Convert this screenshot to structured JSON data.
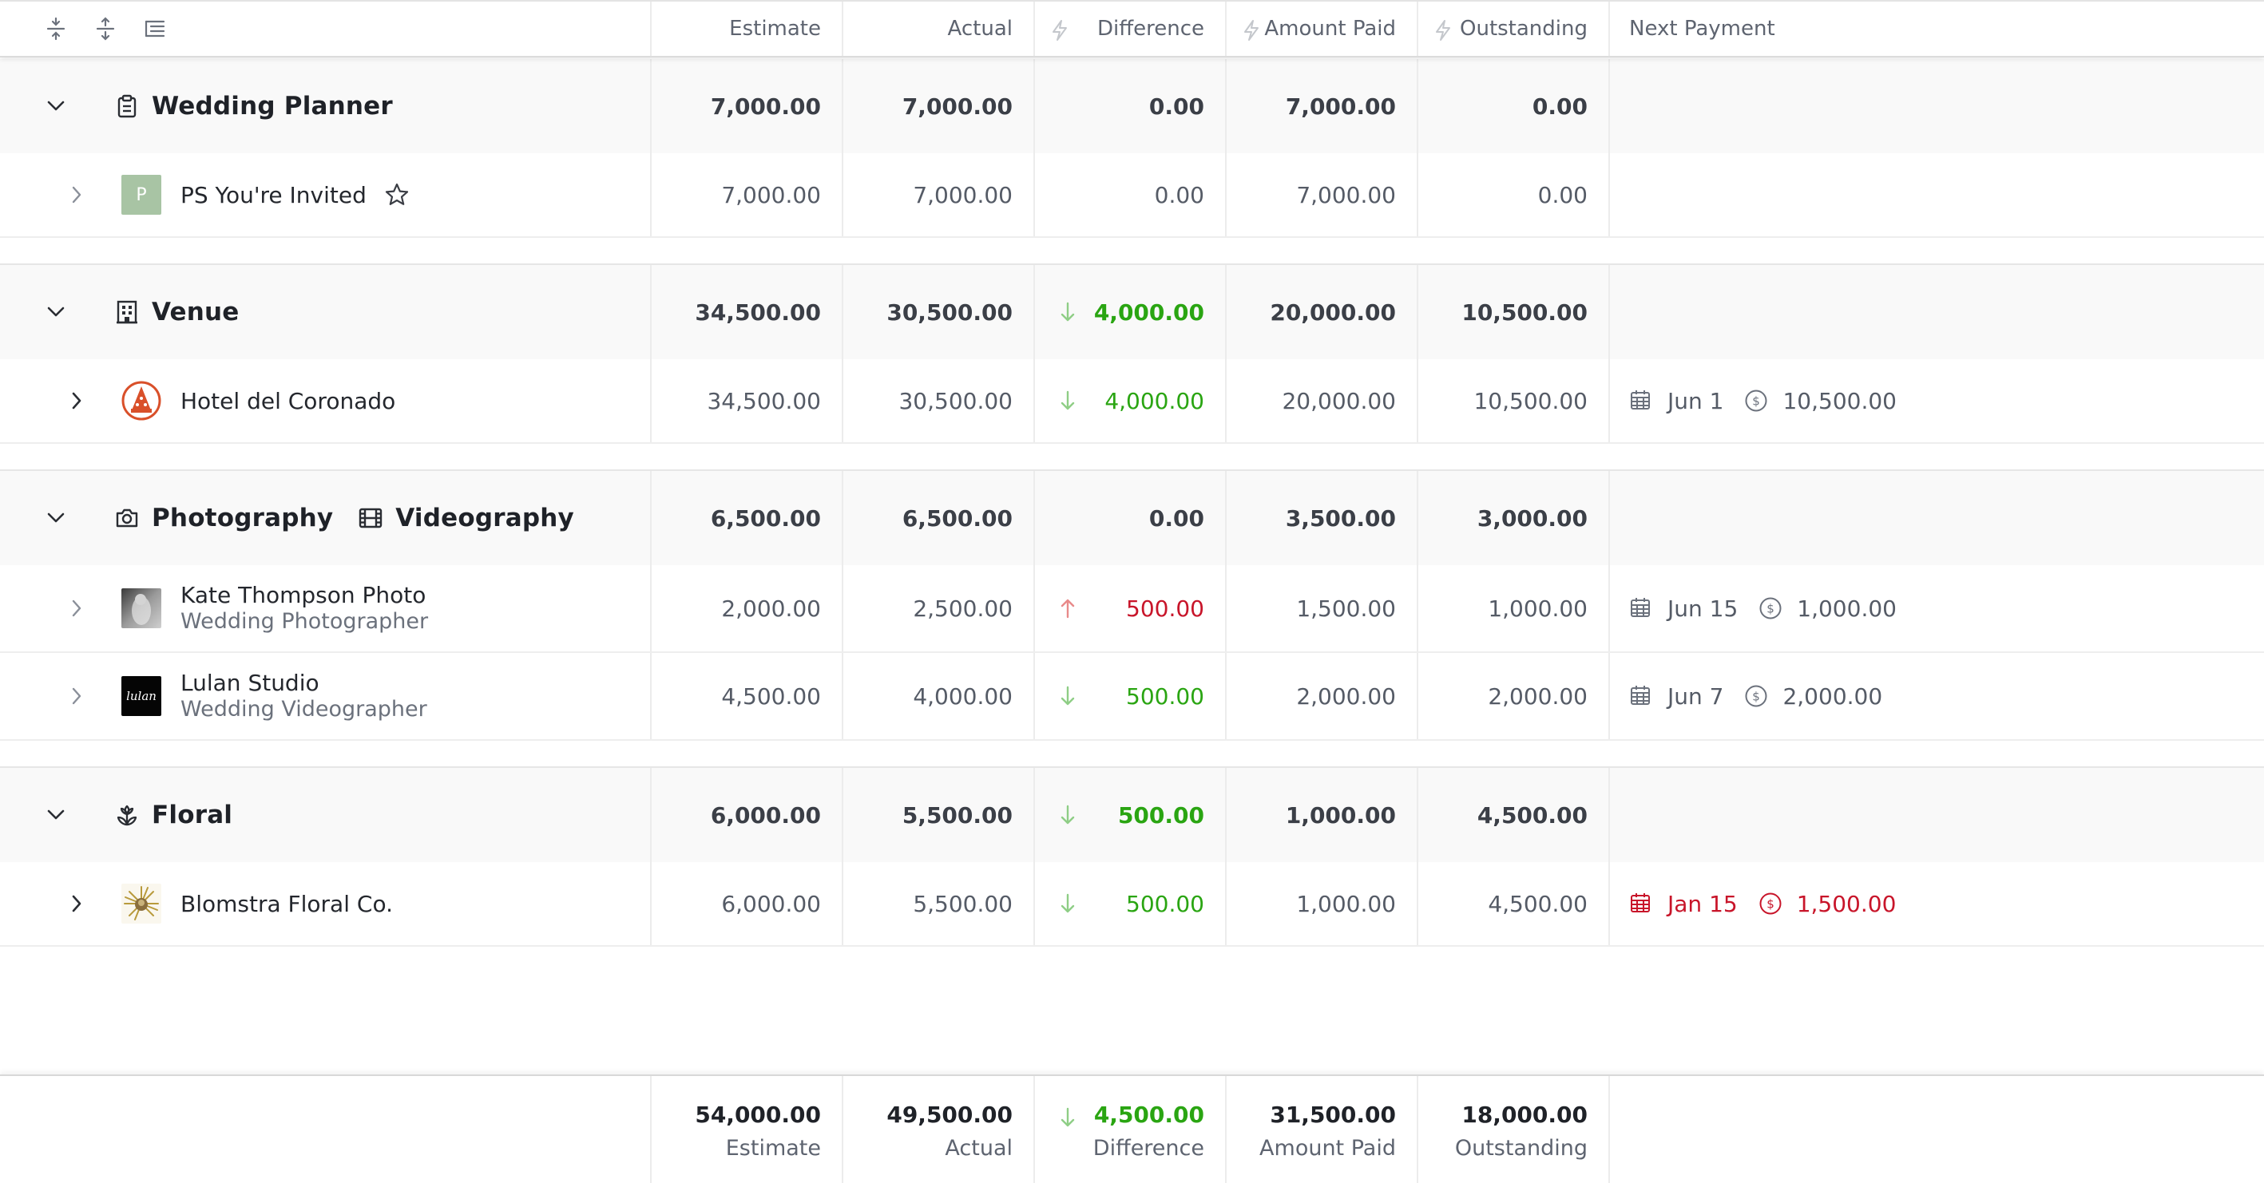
{
  "toolbar": {
    "icons": [
      "collapse-all-icon",
      "expand-all-icon",
      "list-indent-icon"
    ]
  },
  "columns": {
    "estimate": "Estimate",
    "actual": "Actual",
    "difference": "Difference",
    "amount_paid": "Amount Paid",
    "outstanding": "Outstanding",
    "next_payment": "Next Payment"
  },
  "colors": {
    "positive": "#2aa512",
    "negative": "#c8152a",
    "overdue": "#c8152a"
  },
  "groups": [
    {
      "title": "Wedding Planner",
      "icon": "clipboard-icon",
      "estimate": "7,000.00",
      "actual": "7,000.00",
      "difference": "0.00",
      "amount_paid": "7,000.00",
      "outstanding": "0.00",
      "vendors": [
        {
          "name": "PS You're Invited",
          "logo_letter": "P",
          "estimate": "7,000.00",
          "actual": "7,000.00",
          "difference": "0.00",
          "amount_paid": "7,000.00",
          "outstanding": "0.00"
        }
      ]
    },
    {
      "title": "Venue",
      "icon": "building-icon",
      "estimate": "34,500.00",
      "actual": "30,500.00",
      "difference": "4,000.00",
      "amount_paid": "20,000.00",
      "outstanding": "10,500.00",
      "vendors": [
        {
          "name": "Hotel del Coronado",
          "estimate": "34,500.00",
          "actual": "30,500.00",
          "difference": "4,000.00",
          "amount_paid": "20,000.00",
          "outstanding": "10,500.00",
          "next_date": "Jun 1",
          "next_amount": "10,500.00"
        }
      ]
    },
    {
      "title": "Photography",
      "title2": "Videography",
      "icon": "camera-icon",
      "icon2": "film-icon",
      "estimate": "6,500.00",
      "actual": "6,500.00",
      "difference": "0.00",
      "amount_paid": "3,500.00",
      "outstanding": "3,000.00",
      "vendors": [
        {
          "name": "Kate Thompson Photo",
          "subtitle": "Wedding Photographer",
          "estimate": "2,000.00",
          "actual": "2,500.00",
          "difference": "500.00",
          "amount_paid": "1,500.00",
          "outstanding": "1,000.00",
          "next_date": "Jun 15",
          "next_amount": "1,000.00"
        },
        {
          "name": "Lulan Studio",
          "subtitle": "Wedding Videographer",
          "logo_text": "lulan",
          "estimate": "4,500.00",
          "actual": "4,000.00",
          "difference": "500.00",
          "amount_paid": "2,000.00",
          "outstanding": "2,000.00",
          "next_date": "Jun 7",
          "next_amount": "2,000.00"
        }
      ]
    },
    {
      "title": "Floral",
      "icon": "flower-icon",
      "estimate": "6,000.00",
      "actual": "5,500.00",
      "difference": "500.00",
      "amount_paid": "1,000.00",
      "outstanding": "4,500.00",
      "vendors": [
        {
          "name": "Blomstra Floral Co.",
          "estimate": "6,000.00",
          "actual": "5,500.00",
          "difference": "500.00",
          "amount_paid": "1,000.00",
          "outstanding": "4,500.00",
          "next_date": "Jan 15",
          "next_amount": "1,500.00"
        }
      ]
    }
  ],
  "totals": {
    "estimate": "54,000.00",
    "actual": "49,500.00",
    "difference": "4,500.00",
    "amount_paid": "31,500.00",
    "outstanding": "18,000.00",
    "estimate_label": "Estimate",
    "actual_label": "Actual",
    "difference_label": "Difference",
    "amount_paid_label": "Amount Paid",
    "outstanding_label": "Outstanding"
  }
}
